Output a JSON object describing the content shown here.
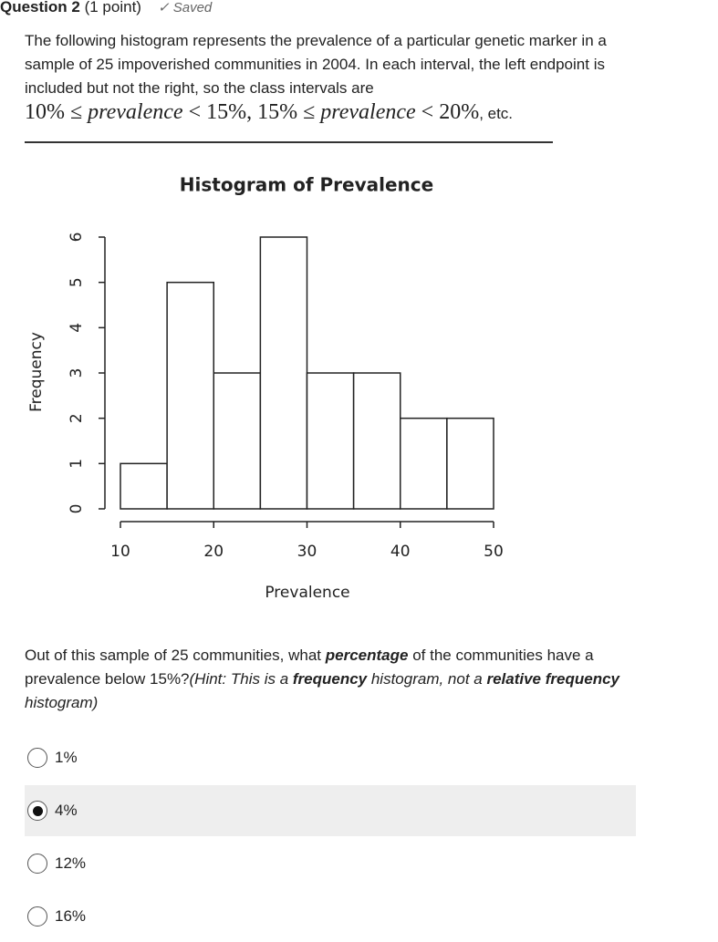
{
  "header": {
    "question": "Question 2",
    "points": "(1 point)",
    "status": "Saved"
  },
  "intro": {
    "text": "The following histogram represents the prevalence of a particular genetic marker in a sample of 25 impoverished communities in 2004. In each interval, the left endpoint is included but not the right, so the class intervals are",
    "math": [
      "10% ≤ ",
      "prevalence",
      " < 15%, 15% ≤ ",
      "prevalence",
      " < 20%"
    ],
    "tail": ", etc."
  },
  "chart_data": {
    "type": "histogram",
    "title": "Histogram of Prevalence",
    "x_label": "Prevalence",
    "y_label": "Frequency",
    "bins": [
      10,
      15,
      20,
      25,
      30,
      35,
      40,
      45,
      50
    ],
    "values": [
      1,
      5,
      3,
      6,
      3,
      3,
      2,
      2
    ],
    "color": "#ffffff",
    "xlim": [
      10,
      50
    ],
    "ylim": [
      0,
      6
    ],
    "xticks": [
      10,
      20,
      30,
      40,
      50
    ],
    "yticks": [
      0,
      1,
      2,
      3,
      4,
      5,
      6
    ]
  },
  "question": {
    "segments": [
      "Out of this sample of 25 communities, what ",
      "percentage",
      " of the communities have a prevalence below 15%?",
      "(Hint: This is a ",
      "frequency",
      " histogram, not a ",
      "relative frequency",
      " histogram)"
    ]
  },
  "options": [
    {
      "label": "1%",
      "selected": false
    },
    {
      "label": "4%",
      "selected": true
    },
    {
      "label": "12%",
      "selected": false
    },
    {
      "label": "16%",
      "selected": false
    }
  ]
}
